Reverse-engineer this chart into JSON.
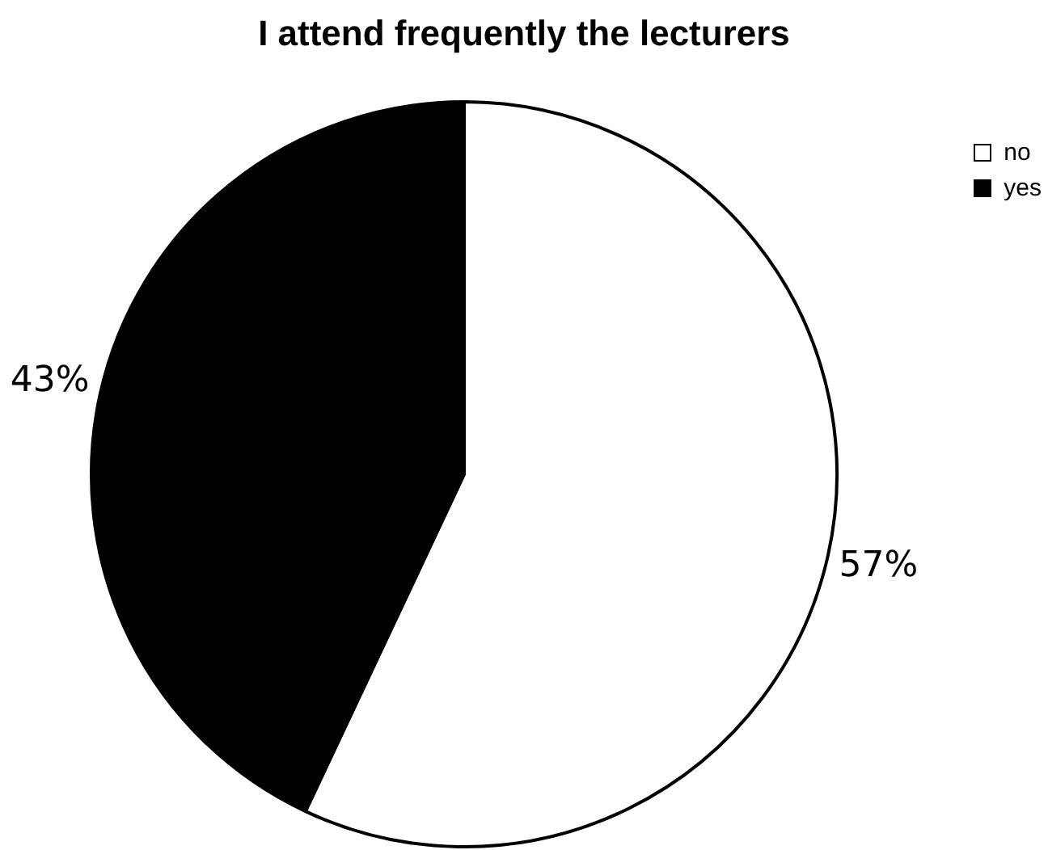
{
  "chart_data": {
    "type": "pie",
    "title": "I attend frequently the lecturers",
    "categories": [
      "no",
      "yes"
    ],
    "values": [
      57,
      43
    ],
    "colors": [
      "#ffffff",
      "#000000"
    ],
    "value_labels": [
      "57%",
      "43%"
    ],
    "legend": "top right"
  }
}
